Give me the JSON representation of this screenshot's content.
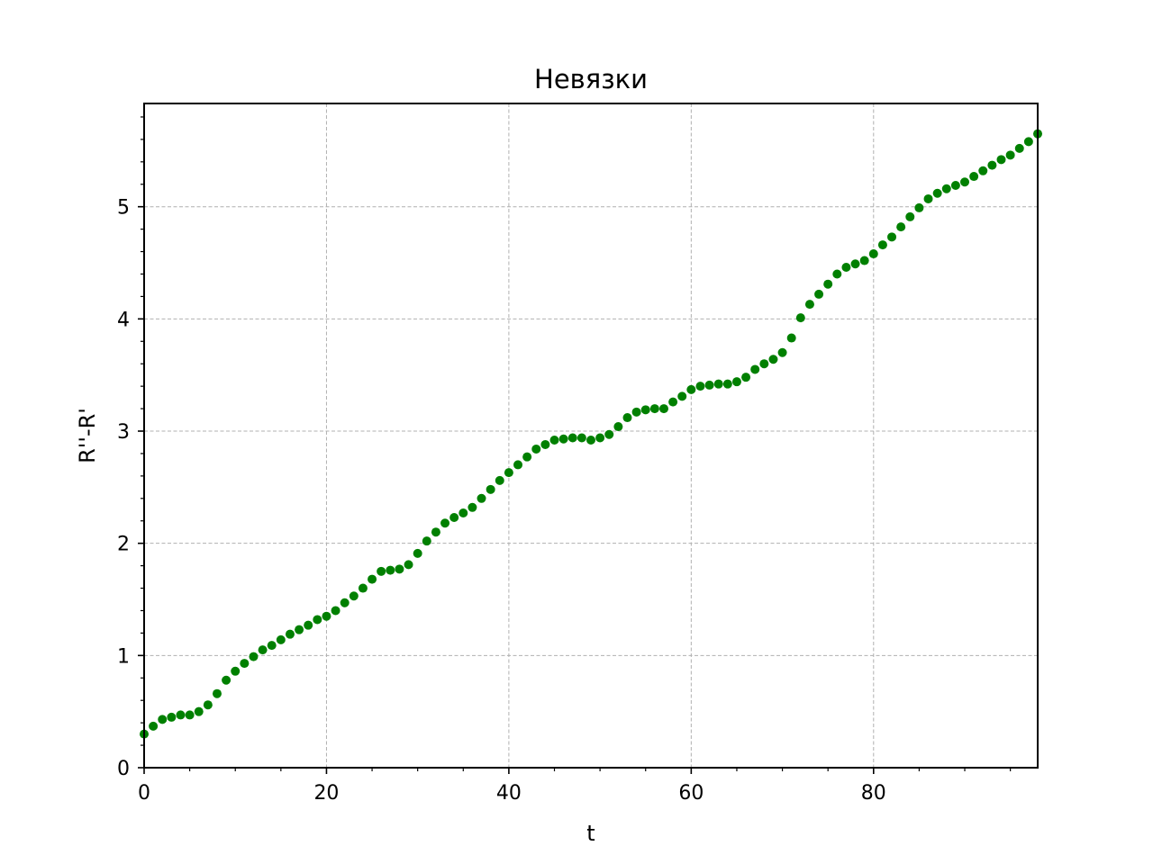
{
  "chart_data": {
    "type": "scatter",
    "title": "Невязки",
    "xlabel": "t",
    "ylabel": "R''-R'",
    "xlim": [
      0,
      98
    ],
    "ylim": [
      0,
      5.92
    ],
    "xticks": [
      0,
      20,
      40,
      60,
      80
    ],
    "yticks": [
      0,
      1,
      2,
      3,
      4,
      5
    ],
    "xtick_labels": [
      "0",
      "20",
      "40",
      "60",
      "80"
    ],
    "ytick_labels": [
      "0",
      "1",
      "2",
      "3",
      "4",
      "5"
    ],
    "grid": true,
    "minor_ticks": true,
    "marker_color": "#008000",
    "series": [
      {
        "x": [
          0,
          1,
          2,
          3,
          4,
          5,
          6,
          7,
          8,
          9,
          10,
          11,
          12,
          13,
          14,
          15,
          16,
          17,
          18,
          19,
          20,
          21,
          22,
          23,
          24,
          25,
          26,
          27,
          28,
          29,
          30,
          31,
          32,
          33,
          34,
          35,
          36,
          37,
          38,
          39,
          40,
          41,
          42,
          43,
          44,
          45,
          46,
          47,
          48,
          49,
          50,
          51,
          52,
          53,
          54,
          55,
          56,
          57,
          58,
          59,
          60,
          61,
          62,
          63,
          64,
          65,
          66,
          67,
          68,
          69,
          70,
          71,
          72,
          73,
          74,
          75,
          76,
          77,
          78,
          79,
          80,
          81,
          82,
          83,
          84,
          85,
          86,
          87,
          88,
          89,
          90,
          91,
          92,
          93,
          94,
          95,
          96,
          97,
          98
        ],
        "y": [
          0.3,
          0.37,
          0.43,
          0.45,
          0.47,
          0.47,
          0.5,
          0.56,
          0.66,
          0.78,
          0.86,
          0.93,
          0.99,
          1.05,
          1.09,
          1.14,
          1.19,
          1.23,
          1.27,
          1.32,
          1.35,
          1.4,
          1.47,
          1.53,
          1.6,
          1.68,
          1.75,
          1.76,
          1.77,
          1.81,
          1.91,
          2.02,
          2.1,
          2.18,
          2.23,
          2.27,
          2.32,
          2.4,
          2.48,
          2.56,
          2.63,
          2.7,
          2.77,
          2.84,
          2.88,
          2.92,
          2.93,
          2.94,
          2.94,
          2.92,
          2.94,
          2.97,
          3.04,
          3.12,
          3.17,
          3.19,
          3.2,
          3.2,
          3.26,
          3.31,
          3.37,
          3.4,
          3.41,
          3.42,
          3.42,
          3.44,
          3.48,
          3.55,
          3.6,
          3.64,
          3.7,
          3.83,
          4.01,
          4.13,
          4.22,
          4.31,
          4.4,
          4.46,
          4.49,
          4.52,
          4.58,
          4.66,
          4.73,
          4.82,
          4.91,
          4.99,
          5.07,
          5.12,
          5.16,
          5.19,
          5.22,
          5.27,
          5.32,
          5.37,
          5.42,
          5.46,
          5.52,
          5.58,
          5.65
        ]
      }
    ]
  }
}
